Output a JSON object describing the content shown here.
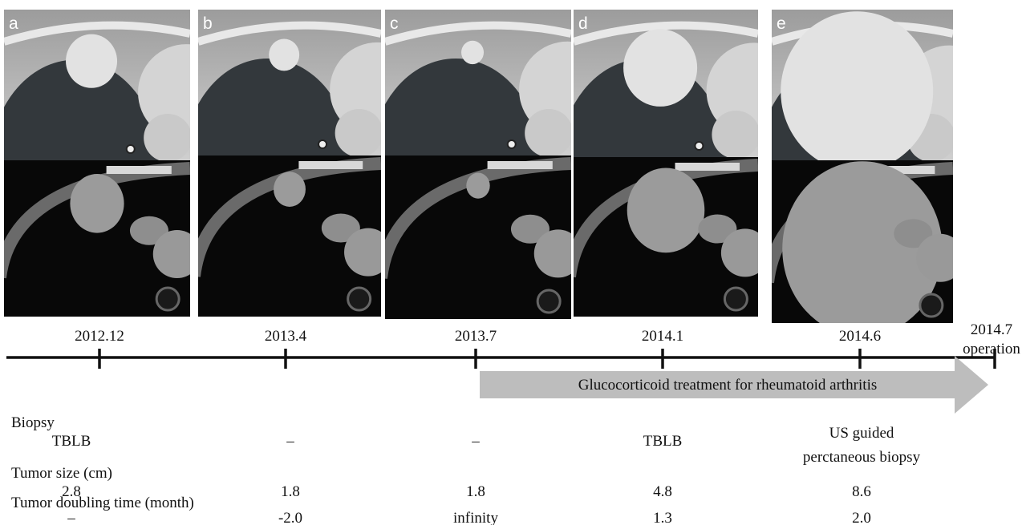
{
  "panels": {
    "labels": [
      "a",
      "b",
      "c",
      "d",
      "e"
    ]
  },
  "timeline": {
    "dates": [
      "2012.12",
      "2013.4",
      "2013.7",
      "2014.1",
      "2014.6"
    ],
    "end_date": "2014.7",
    "end_label": "operation",
    "treatment": "Glucocorticoid  treatment for rheumatoid arthritis"
  },
  "table": {
    "biopsy_label": "Biopsy",
    "biopsy": [
      [
        "TBLB"
      ],
      [
        "–"
      ],
      [
        "–"
      ],
      [
        "TBLB"
      ],
      [
        "US guided",
        "perctaneous biopsy"
      ]
    ],
    "tumor_size_label": "Tumor size (cm)",
    "tumor_size": [
      "2.8",
      "1.8",
      "1.8",
      "4.8",
      "8.6"
    ],
    "doubling_time_label": "Tumor doubling time (month)",
    "doubling_time": [
      "–",
      "-2.0",
      "infinity",
      "1.3",
      "2.0"
    ]
  }
}
